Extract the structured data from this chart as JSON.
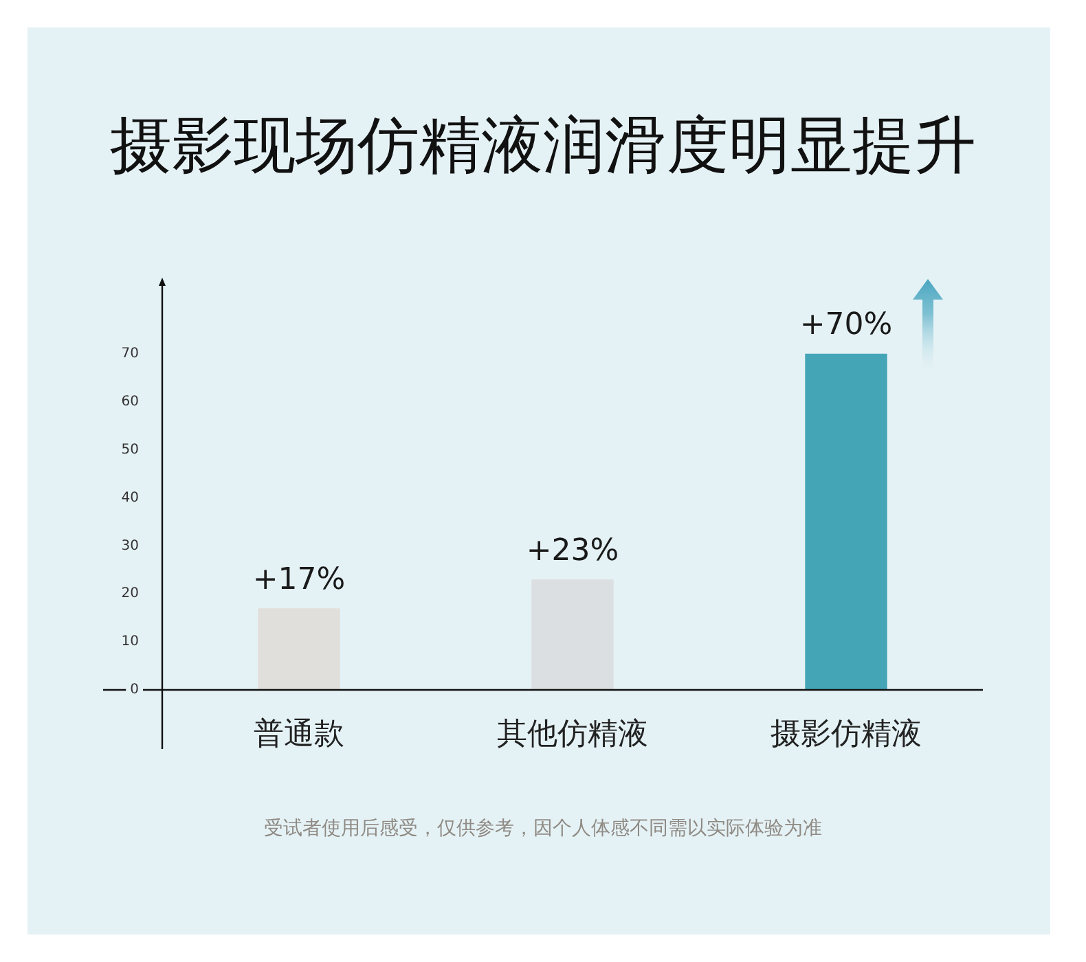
{
  "chart_data": {
    "type": "bar",
    "title": "摄影现场仿精液润滑度明显提升",
    "categories": [
      "普通款",
      "其他仿精液",
      "摄影仿精液"
    ],
    "values": [
      17,
      23,
      70
    ],
    "colors": [
      "#e1dfdb",
      "#dcdfe1",
      "#44a5b6"
    ],
    "value_labels": [
      "+17%",
      "+23%",
      "+70%"
    ],
    "ylim": [
      0,
      85
    ],
    "yticks": [
      0,
      10,
      20,
      30,
      40,
      50,
      60,
      70
    ],
    "grid": false,
    "legend": false,
    "annotations": [
      "受试者使用后感受，仅供参考，因个人体感不同需以实际体验为准"
    ]
  }
}
